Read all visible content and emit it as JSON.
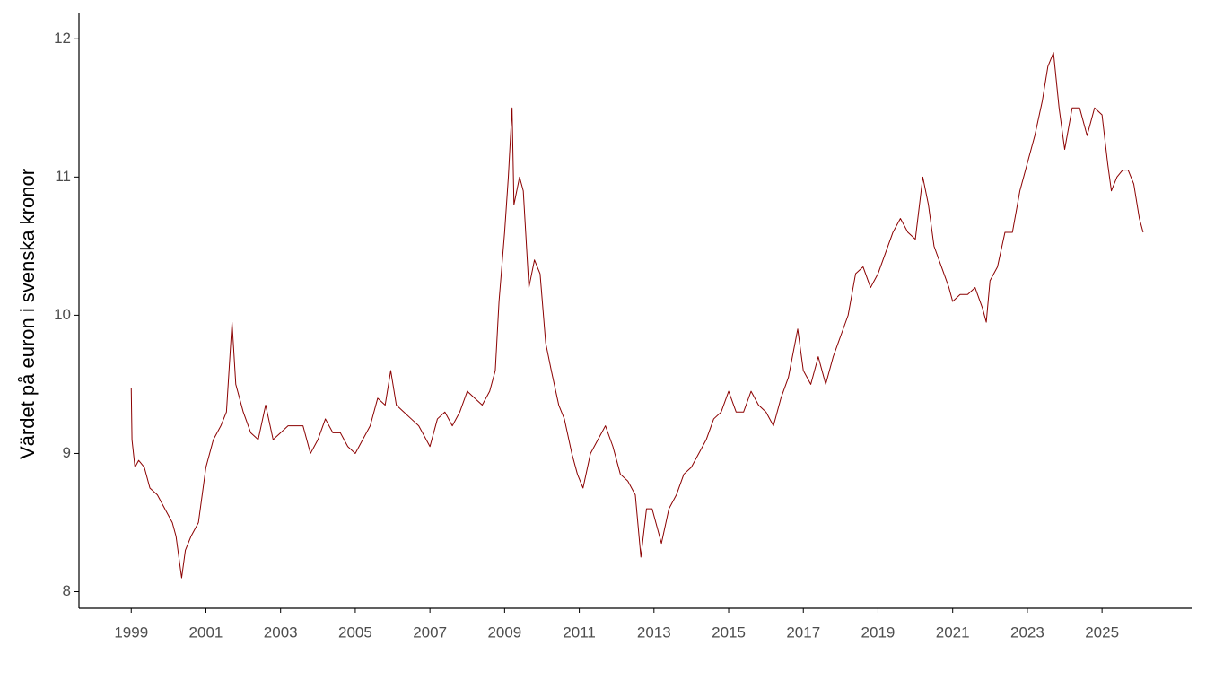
{
  "chart_data": {
    "type": "line",
    "y_label": "Värdet på euron i svenska kronor",
    "x": [
      1999.0,
      1999.02,
      1999.1,
      1999.2,
      1999.35,
      1999.5,
      1999.7,
      1999.9,
      2000.1,
      2000.2,
      2000.35,
      2000.45,
      2000.6,
      2000.8,
      2001.0,
      2001.2,
      2001.4,
      2001.55,
      2001.7,
      2001.8,
      2002.0,
      2002.2,
      2002.4,
      2002.6,
      2002.8,
      2003.0,
      2003.2,
      2003.4,
      2003.6,
      2003.8,
      2004.0,
      2004.2,
      2004.4,
      2004.6,
      2004.8,
      2005.0,
      2005.2,
      2005.4,
      2005.6,
      2005.8,
      2005.95,
      2006.1,
      2006.3,
      2006.5,
      2006.7,
      2006.9,
      2007.0,
      2007.2,
      2007.4,
      2007.6,
      2007.8,
      2008.0,
      2008.2,
      2008.4,
      2008.6,
      2008.75,
      2008.85,
      2009.0,
      2009.1,
      2009.2,
      2009.25,
      2009.4,
      2009.5,
      2009.65,
      2009.8,
      2009.95,
      2010.1,
      2010.25,
      2010.45,
      2010.6,
      2010.8,
      2010.95,
      2011.1,
      2011.3,
      2011.5,
      2011.7,
      2011.9,
      2012.1,
      2012.3,
      2012.5,
      2012.65,
      2012.8,
      2012.95,
      2013.2,
      2013.4,
      2013.6,
      2013.8,
      2014.0,
      2014.2,
      2014.4,
      2014.6,
      2014.8,
      2015.0,
      2015.2,
      2015.4,
      2015.6,
      2015.8,
      2016.0,
      2016.2,
      2016.4,
      2016.6,
      2016.85,
      2017.0,
      2017.2,
      2017.4,
      2017.6,
      2017.8,
      2018.0,
      2018.2,
      2018.4,
      2018.6,
      2018.8,
      2019.0,
      2019.2,
      2019.4,
      2019.6,
      2019.8,
      2020.0,
      2020.2,
      2020.35,
      2020.5,
      2020.7,
      2020.9,
      2021.0,
      2021.2,
      2021.4,
      2021.6,
      2021.8,
      2021.9,
      2022.0,
      2022.2,
      2022.4,
      2022.6,
      2022.8,
      2023.0,
      2023.2,
      2023.4,
      2023.55,
      2023.7,
      2023.85,
      2024.0,
      2024.2,
      2024.4,
      2024.6,
      2024.8,
      2025.0,
      2025.15,
      2025.25,
      2025.4,
      2025.55,
      2025.7,
      2025.85,
      2026.0,
      2026.1
    ],
    "series": [
      {
        "color": "#8b0000",
        "values": [
          9.47,
          9.1,
          8.9,
          8.95,
          8.9,
          8.75,
          8.7,
          8.6,
          8.5,
          8.4,
          8.1,
          8.3,
          8.4,
          8.5,
          8.9,
          9.1,
          9.2,
          9.3,
          9.95,
          9.5,
          9.3,
          9.15,
          9.1,
          9.35,
          9.1,
          9.15,
          9.2,
          9.2,
          9.2,
          9.0,
          9.1,
          9.25,
          9.15,
          9.15,
          9.05,
          9.0,
          9.1,
          9.2,
          9.4,
          9.35,
          9.6,
          9.35,
          9.3,
          9.25,
          9.2,
          9.1,
          9.05,
          9.25,
          9.3,
          9.2,
          9.3,
          9.45,
          9.4,
          9.35,
          9.45,
          9.6,
          10.1,
          10.6,
          11.0,
          11.5,
          10.8,
          11.0,
          10.9,
          10.2,
          10.4,
          10.3,
          9.8,
          9.6,
          9.35,
          9.25,
          9.0,
          8.85,
          8.75,
          9.0,
          9.1,
          9.2,
          9.05,
          8.85,
          8.8,
          8.7,
          8.25,
          8.6,
          8.6,
          8.35,
          8.6,
          8.7,
          8.85,
          8.9,
          9.0,
          9.1,
          9.25,
          9.3,
          9.45,
          9.3,
          9.3,
          9.45,
          9.35,
          9.3,
          9.2,
          9.4,
          9.55,
          9.9,
          9.6,
          9.5,
          9.7,
          9.5,
          9.7,
          9.85,
          10.0,
          10.3,
          10.35,
          10.2,
          10.3,
          10.45,
          10.6,
          10.7,
          10.6,
          10.55,
          11.0,
          10.8,
          10.5,
          10.35,
          10.2,
          10.1,
          10.15,
          10.15,
          10.2,
          10.05,
          9.95,
          10.25,
          10.35,
          10.6,
          10.6,
          10.9,
          11.1,
          11.3,
          11.55,
          11.8,
          11.9,
          11.5,
          11.2,
          11.5,
          11.5,
          11.3,
          11.5,
          11.45,
          11.1,
          10.9,
          11.0,
          11.05,
          11.05,
          10.95,
          10.7,
          10.6
        ]
      }
    ],
    "xlim": [
      1997.6,
      2027.4
    ],
    "xticks": [
      1999,
      2001,
      2003,
      2005,
      2007,
      2009,
      2011,
      2013,
      2015,
      2017,
      2019,
      2021,
      2023,
      2025
    ],
    "ylim": [
      7.88,
      12.19
    ],
    "yticks": [
      8,
      9,
      10,
      11,
      12
    ],
    "grid": false
  }
}
